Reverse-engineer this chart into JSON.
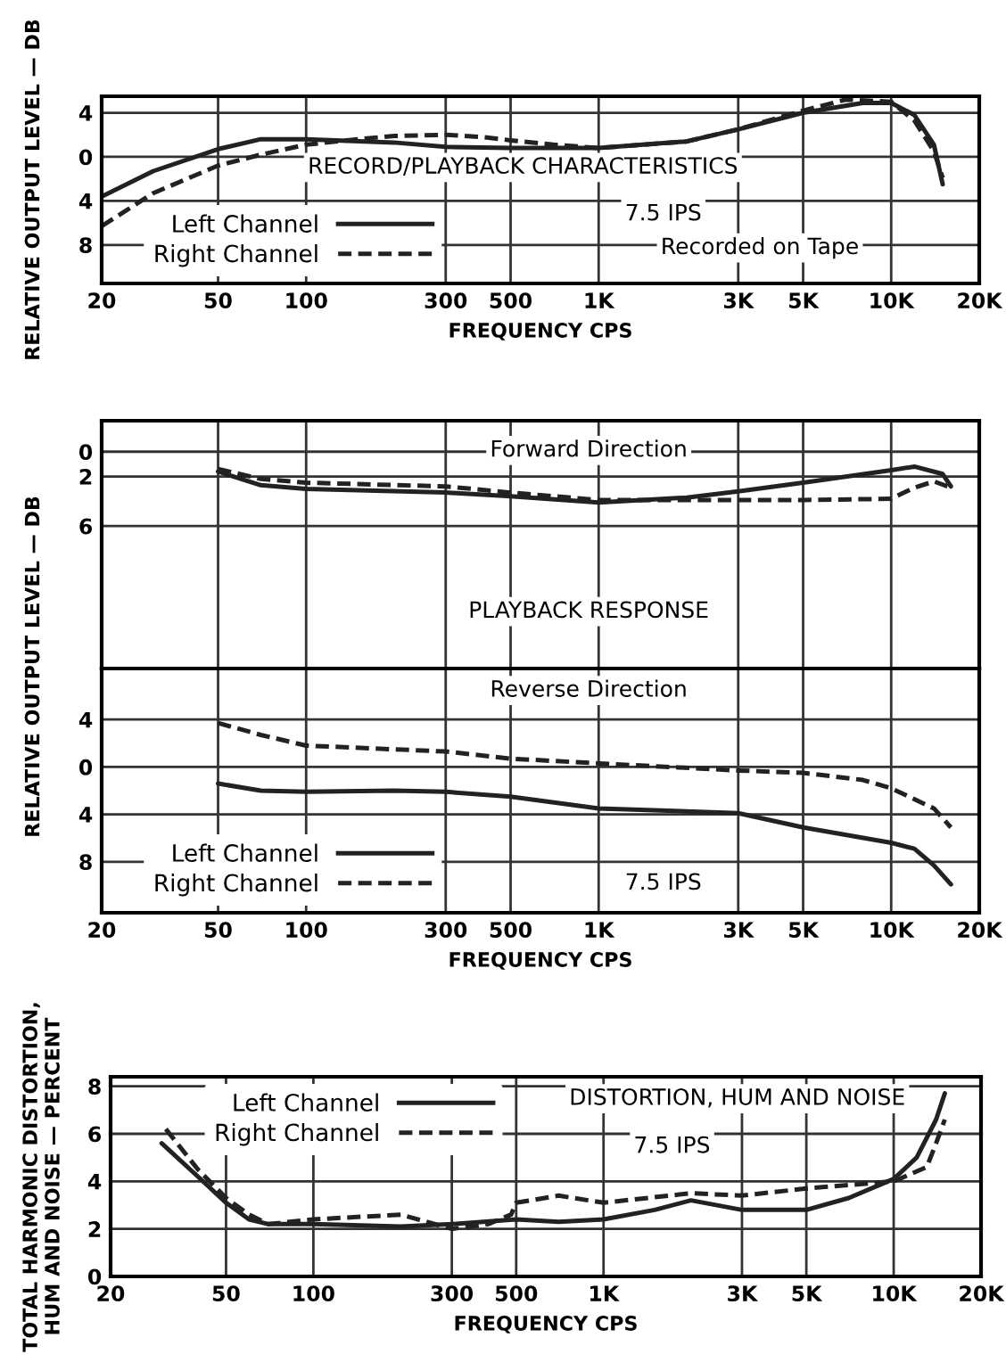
{
  "chart_data": [
    {
      "type": "line",
      "ylabel": "RELATIVE OUTPUT LEVEL — DB",
      "xlabel": "FREQUENCY CPS",
      "log": "x",
      "grid": true,
      "legend": "bottom left",
      "xlim": [
        20,
        20000
      ],
      "xticks": [
        20,
        50,
        100,
        300,
        500,
        {
          "value": 1000,
          "label": "1K"
        },
        {
          "value": 3000,
          "label": "3K"
        },
        {
          "value": 5000,
          "label": "5K"
        },
        {
          "value": 10000,
          "label": "10K"
        },
        {
          "value": 20000,
          "label": "20K"
        }
      ],
      "ylim": [
        -11.5,
        5.5
      ],
      "yticks": [
        4,
        0,
        {
          "value": -4,
          "label": "4"
        },
        {
          "value": -8,
          "label": "8"
        }
      ],
      "annotations": [
        "RECORD/PLAYBACK CHARACTERISTICS",
        "7.5 IPS",
        "Recorded on Tape"
      ],
      "series": [
        {
          "name": "Left Channel",
          "color": "#222222",
          "line_style": "solid",
          "x": [
            20,
            30,
            50,
            70,
            100,
            200,
            300,
            500,
            1000,
            2000,
            3000,
            5000,
            8000,
            10000,
            12000,
            14000,
            15000
          ],
          "values": [
            -3.6,
            -1.3,
            0.7,
            1.6,
            1.6,
            1.3,
            0.9,
            0.8,
            0.8,
            1.4,
            2.5,
            4.0,
            4.9,
            4.9,
            3.8,
            1.1,
            -2.5
          ]
        },
        {
          "name": "Right Channel",
          "color": "#222222",
          "line_style": "dashed",
          "x": [
            20,
            30,
            50,
            70,
            100,
            150,
            200,
            300,
            400,
            500,
            700,
            1000,
            2000,
            3000,
            5000,
            7000,
            10000,
            12000,
            14000,
            15000
          ],
          "values": [
            -6.3,
            -3.3,
            -0.8,
            0.2,
            1.1,
            1.6,
            1.9,
            2.0,
            1.8,
            1.5,
            1.1,
            0.8,
            1.4,
            2.5,
            4.2,
            5.2,
            5.0,
            3.3,
            0.5,
            -1.9
          ]
        }
      ]
    },
    {
      "type": "line",
      "tick_labels": "y",
      "log": "x",
      "grid": true,
      "xlim": [
        20,
        20000
      ],
      "xticks": [
        20,
        50,
        100,
        300,
        500,
        1000,
        3000,
        5000,
        10000,
        20000
      ],
      "ylim": [
        -17.5,
        2.5
      ],
      "yticks": [
        0,
        {
          "value": -2,
          "label": "2"
        },
        {
          "value": -6,
          "label": "6"
        }
      ],
      "annotations": [
        "Forward Direction",
        "PLAYBACK RESPONSE"
      ],
      "series": [
        {
          "color": "#222222",
          "line_style": "solid",
          "x": [
            50,
            70,
            100,
            300,
            500,
            1000,
            2000,
            3000,
            5000,
            10000,
            12000,
            15000,
            16000
          ],
          "values": [
            -1.6,
            -2.7,
            -3.0,
            -3.3,
            -3.6,
            -4.1,
            -3.7,
            -3.2,
            -2.5,
            -1.5,
            -1.2,
            -1.8,
            -2.8
          ]
        },
        {
          "color": "#222222",
          "line_style": "dashed",
          "x": [
            50,
            70,
            100,
            300,
            500,
            1000,
            3000,
            5000,
            10000,
            12000,
            14000,
            16000
          ],
          "values": [
            -1.4,
            -2.2,
            -2.5,
            -2.8,
            -3.3,
            -3.9,
            -3.9,
            -3.9,
            -3.8,
            -2.9,
            -2.4,
            -2.9
          ]
        }
      ]
    },
    {
      "type": "line",
      "ylabel": "RELATIVE OUTPUT LEVEL — DB",
      "xlabel": "FREQUENCY CPS",
      "log": "x",
      "grid": true,
      "legend": "bottom left",
      "xlim": [
        20,
        20000
      ],
      "xticks": [
        20,
        50,
        100,
        300,
        500,
        {
          "value": 1000,
          "label": "1K"
        },
        {
          "value": 3000,
          "label": "3K"
        },
        {
          "value": 5000,
          "label": "5K"
        },
        {
          "value": 10000,
          "label": "10K"
        },
        {
          "value": 20000,
          "label": "20K"
        }
      ],
      "ylim": [
        -12.3,
        8.3
      ],
      "yticks": [
        4,
        0,
        {
          "value": -4,
          "label": "4"
        },
        {
          "value": -8,
          "label": "8"
        }
      ],
      "annotations": [
        "Reverse Direction",
        "7.5 IPS"
      ],
      "series": [
        {
          "name": "Left Channel",
          "color": "#222222",
          "line_style": "solid",
          "x": [
            50,
            70,
            100,
            200,
            300,
            500,
            1000,
            3000,
            5000,
            10000,
            12000,
            14000,
            16000
          ],
          "values": [
            -1.4,
            -2.0,
            -2.1,
            -2.0,
            -2.1,
            -2.5,
            -3.5,
            -3.9,
            -5.1,
            -6.4,
            -6.9,
            -8.3,
            -9.9
          ]
        },
        {
          "name": "Right Channel",
          "color": "#222222",
          "line_style": "dashed",
          "x": [
            50,
            70,
            100,
            300,
            500,
            1000,
            3000,
            5000,
            8000,
            10000,
            14000,
            16000
          ],
          "values": [
            3.7,
            2.7,
            1.8,
            1.3,
            0.7,
            0.3,
            -0.3,
            -0.5,
            -1.1,
            -1.8,
            -3.5,
            -5.1
          ]
        }
      ]
    },
    {
      "type": "line",
      "ylabel": "TOTAL HARMONIC DISTORTION,\nHUM AND NOISE — PERCENT",
      "xlabel": "FREQUENCY CPS",
      "log": "x",
      "grid": true,
      "legend": "top left",
      "xlim": [
        20,
        20000
      ],
      "xticks": [
        20,
        50,
        100,
        300,
        500,
        {
          "value": 1000,
          "label": "1K"
        },
        {
          "value": 3000,
          "label": "3K"
        },
        {
          "value": 5000,
          "label": "5K"
        },
        {
          "value": 10000,
          "label": "10K"
        },
        {
          "value": 20000,
          "label": "20K"
        }
      ],
      "ylim": [
        0,
        8.4
      ],
      "yticks": [
        0,
        2,
        4,
        6,
        8
      ],
      "annotations": [
        "DISTORTION, HUM AND NOISE",
        "7.5 IPS"
      ],
      "series": [
        {
          "name": "Left Channel",
          "color": "#222222",
          "line_style": "solid",
          "x": [
            30,
            40,
            50,
            60,
            70,
            100,
            200,
            300,
            500,
            700,
            1000,
            1500,
            2000,
            3000,
            5000,
            7000,
            10000,
            12000,
            14000,
            15000
          ],
          "values": [
            5.6,
            4.2,
            3.1,
            2.4,
            2.2,
            2.2,
            2.1,
            2.2,
            2.4,
            2.3,
            2.4,
            2.8,
            3.2,
            2.8,
            2.8,
            3.3,
            4.1,
            5.0,
            6.6,
            7.7
          ]
        },
        {
          "name": "Right Channel",
          "color": "#222222",
          "line_style": "dashed",
          "x": [
            31,
            40,
            50,
            60,
            70,
            100,
            200,
            300,
            400,
            480,
            500,
            700,
            1000,
            2000,
            3000,
            5000,
            10000,
            13000,
            14000,
            15000
          ],
          "values": [
            6.2,
            4.5,
            3.3,
            2.6,
            2.2,
            2.4,
            2.6,
            2.0,
            2.2,
            2.6,
            3.1,
            3.4,
            3.1,
            3.5,
            3.4,
            3.7,
            4.0,
            4.6,
            5.6,
            6.6
          ]
        }
      ]
    }
  ]
}
